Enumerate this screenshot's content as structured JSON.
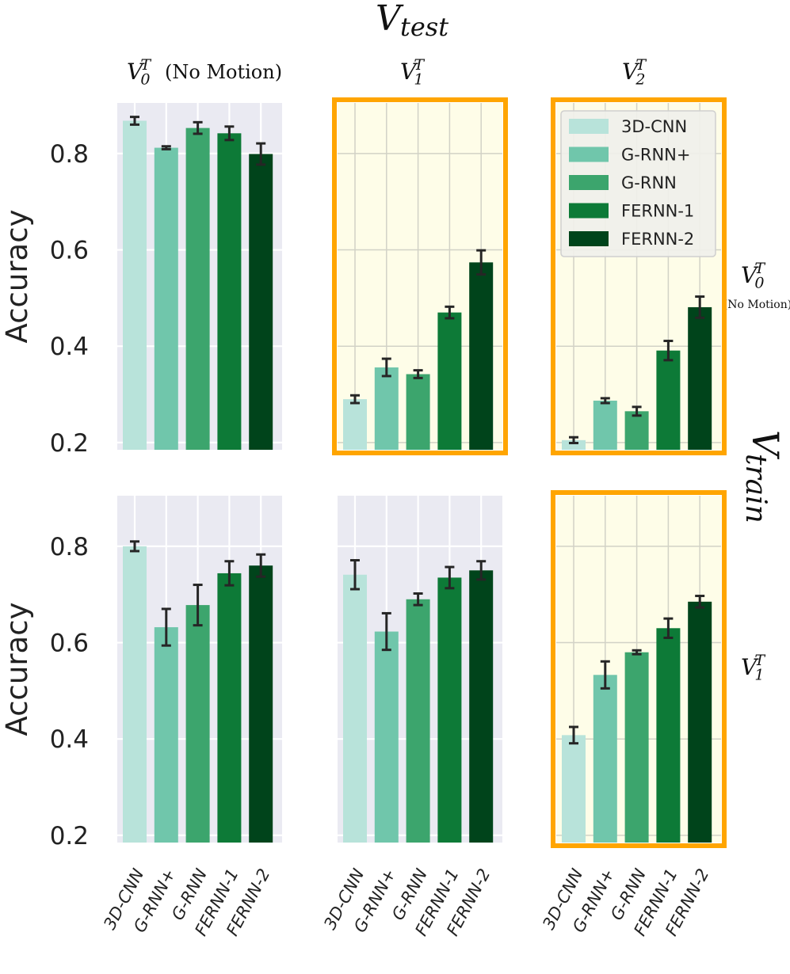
{
  "chart_data": {
    "type": "bar",
    "title": "V_test",
    "column_axis_label": "V_test",
    "row_axis_label": "V_train",
    "columns": [
      {
        "name": "V",
        "sup": "T",
        "sub": "0",
        "suffix": "(No Motion)"
      },
      {
        "name": "V",
        "sup": "T",
        "sub": "1",
        "suffix": ""
      },
      {
        "name": "V",
        "sup": "T",
        "sub": "2",
        "suffix": ""
      }
    ],
    "rows": [
      {
        "name": "V",
        "sup": "T",
        "sub": "0",
        "note": "(No Motion)"
      },
      {
        "name": "V",
        "sup": "T",
        "sub": "1",
        "note": ""
      }
    ],
    "categories": [
      "3D-CNN",
      "G-RNN+",
      "G-RNN",
      "FERNN-1",
      "FERNN-2"
    ],
    "colors": [
      "#b8e3da",
      "#70c6ab",
      "#3ca56d",
      "#0d7a37",
      "#00441b"
    ],
    "ylabel": "Accuracy",
    "ylim": [
      0.185,
      0.905
    ],
    "yticks": [
      0.2,
      0.4,
      0.6,
      0.8
    ],
    "ytick_labels": [
      "0.2",
      "0.4",
      "0.6",
      "0.8"
    ],
    "highlight_color": "#ffa500",
    "legend": {
      "position": "upper-right",
      "panel": "row0-col2"
    },
    "panels": [
      {
        "row": 0,
        "col": 0,
        "highlighted": false,
        "values": [
          0.868,
          0.812,
          0.853,
          0.842,
          0.799
        ],
        "errors": [
          0.008,
          0.003,
          0.012,
          0.014,
          0.022
        ]
      },
      {
        "row": 0,
        "col": 1,
        "highlighted": true,
        "values": [
          0.29,
          0.356,
          0.342,
          0.47,
          0.574
        ],
        "errors": [
          0.008,
          0.018,
          0.008,
          0.012,
          0.025
        ]
      },
      {
        "row": 0,
        "col": 2,
        "highlighted": true,
        "values": [
          0.205,
          0.287,
          0.265,
          0.391,
          0.481
        ],
        "errors": [
          0.006,
          0.005,
          0.009,
          0.02,
          0.022
        ]
      },
      {
        "row": 1,
        "col": 0,
        "highlighted": false,
        "values": [
          0.8,
          0.632,
          0.678,
          0.744,
          0.76
        ],
        "errors": [
          0.01,
          0.038,
          0.042,
          0.025,
          0.023
        ]
      },
      {
        "row": 1,
        "col": 1,
        "highlighted": false,
        "values": [
          0.741,
          0.623,
          0.69,
          0.735,
          0.75
        ],
        "errors": [
          0.03,
          0.038,
          0.012,
          0.022,
          0.019
        ]
      },
      {
        "row": 1,
        "col": 2,
        "highlighted": true,
        "values": [
          0.408,
          0.533,
          0.58,
          0.63,
          0.685
        ],
        "errors": [
          0.017,
          0.028,
          0.004,
          0.02,
          0.012
        ]
      }
    ]
  }
}
